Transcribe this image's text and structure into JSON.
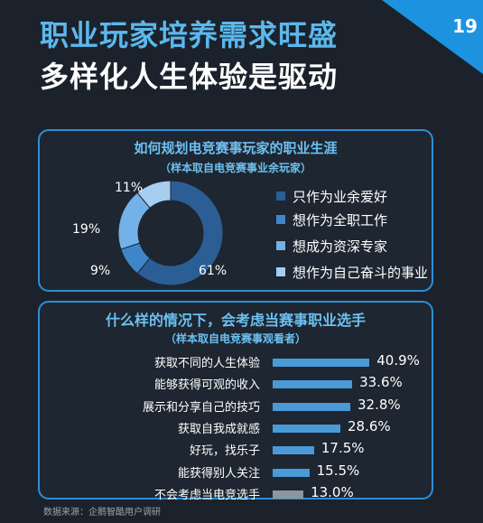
{
  "page_number": "19",
  "title_line1": "职业玩家培养需求旺盛",
  "title_line2": "多样化人生体验是驱动",
  "colors": {
    "accent": "#2c8fd6",
    "pie": [
      "#2a5e95",
      "#3f86c9",
      "#73b2e8",
      "#a7cdf0"
    ],
    "bar": "#4a9ad8",
    "bar_muted": "#8e959c"
  },
  "panel1": {
    "title": "如何规划电竞赛事玩家的职业生涯",
    "subtitle": "（样本取自电竞赛事业余玩家）"
  },
  "panel2": {
    "title": "什么样的情况下，会考虑当赛事职业选手",
    "subtitle": "（样本取自电竞赛事观看者）"
  },
  "source": "数据来源：企鹅智酷用户调研",
  "chart_data": [
    {
      "type": "pie",
      "title": "如何规划电竞赛事玩家的职业生涯",
      "subtitle": "（样本取自电竞赛事业余玩家）",
      "categories": [
        "只作为业余爱好",
        "想作为全职工作",
        "想成为资深专家",
        "想作为自己奋斗的事业"
      ],
      "values": [
        61,
        9,
        19,
        11
      ],
      "value_labels": [
        "61%",
        "9%",
        "19%",
        "11%"
      ],
      "legend": "right"
    },
    {
      "type": "bar",
      "orientation": "horizontal",
      "title": "什么样的情况下，会考虑当赛事职业选手",
      "subtitle": "（样本取自电竞赛事观看者）",
      "categories": [
        "获取不同的人生体验",
        "能够获得可观的收入",
        "展示和分享自己的技巧",
        "获取自我成就感",
        "好玩，找乐子",
        "能获得别人关注",
        "不会考虑当电竞选手"
      ],
      "values": [
        40.9,
        33.6,
        32.8,
        28.6,
        17.5,
        15.5,
        13.0
      ],
      "value_labels": [
        "40.9%",
        "33.6%",
        "32.8%",
        "28.6%",
        "17.5%",
        "15.5%",
        "13.0%"
      ],
      "xlim": [
        0,
        45
      ]
    }
  ]
}
